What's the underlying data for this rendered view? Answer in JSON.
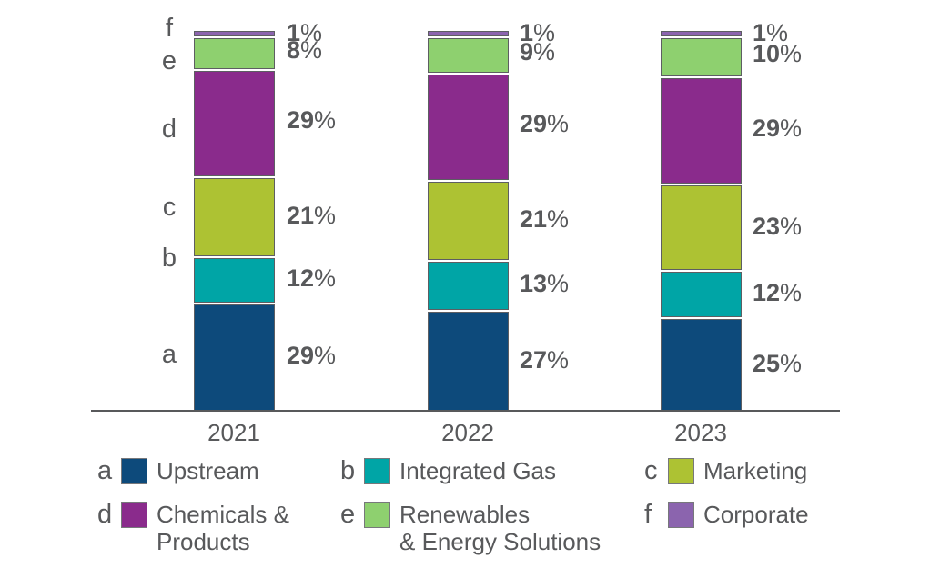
{
  "chart_data": {
    "type": "bar",
    "variant": "stacked-vertical-percent",
    "title": "",
    "xlabel": "",
    "ylabel": "",
    "unit": "%",
    "ylim": [
      0,
      100
    ],
    "grid": false,
    "legend_position": "bottom",
    "categories": [
      "2021",
      "2022",
      "2023"
    ],
    "series": [
      {
        "key": "a",
        "name": "Upstream",
        "color": "#0d4a7b",
        "values": [
          29,
          27,
          25
        ],
        "legend_lines": [
          "Upstream"
        ]
      },
      {
        "key": "b",
        "name": "Integrated Gas",
        "color": "#00a5a6",
        "values": [
          12,
          13,
          12
        ],
        "legend_lines": [
          "Integrated Gas"
        ]
      },
      {
        "key": "c",
        "name": "Marketing",
        "color": "#adc233",
        "values": [
          21,
          21,
          23
        ],
        "legend_lines": [
          "Marketing"
        ]
      },
      {
        "key": "d",
        "name": "Chemicals & Products",
        "color": "#8a2b8c",
        "values": [
          29,
          29,
          29
        ],
        "legend_lines": [
          "Chemicals &",
          "Products"
        ]
      },
      {
        "key": "e",
        "name": "Renewables & Energy Solutions",
        "color": "#8ed06f",
        "values": [
          8,
          9,
          10
        ],
        "legend_lines": [
          "Renewables",
          "& Energy Solutions"
        ]
      },
      {
        "key": "f",
        "name": "Corporate",
        "color": "#8b64ae",
        "values": [
          1,
          1,
          1
        ],
        "legend_lines": [
          "Corporate"
        ]
      }
    ],
    "stack_order_top_to_bottom": [
      "f",
      "e",
      "d",
      "c",
      "b",
      "a"
    ]
  },
  "colors": {
    "text": "#58595b",
    "axis": "#58595b",
    "segment_border": "#5d5e62",
    "background": "#ffffff"
  }
}
